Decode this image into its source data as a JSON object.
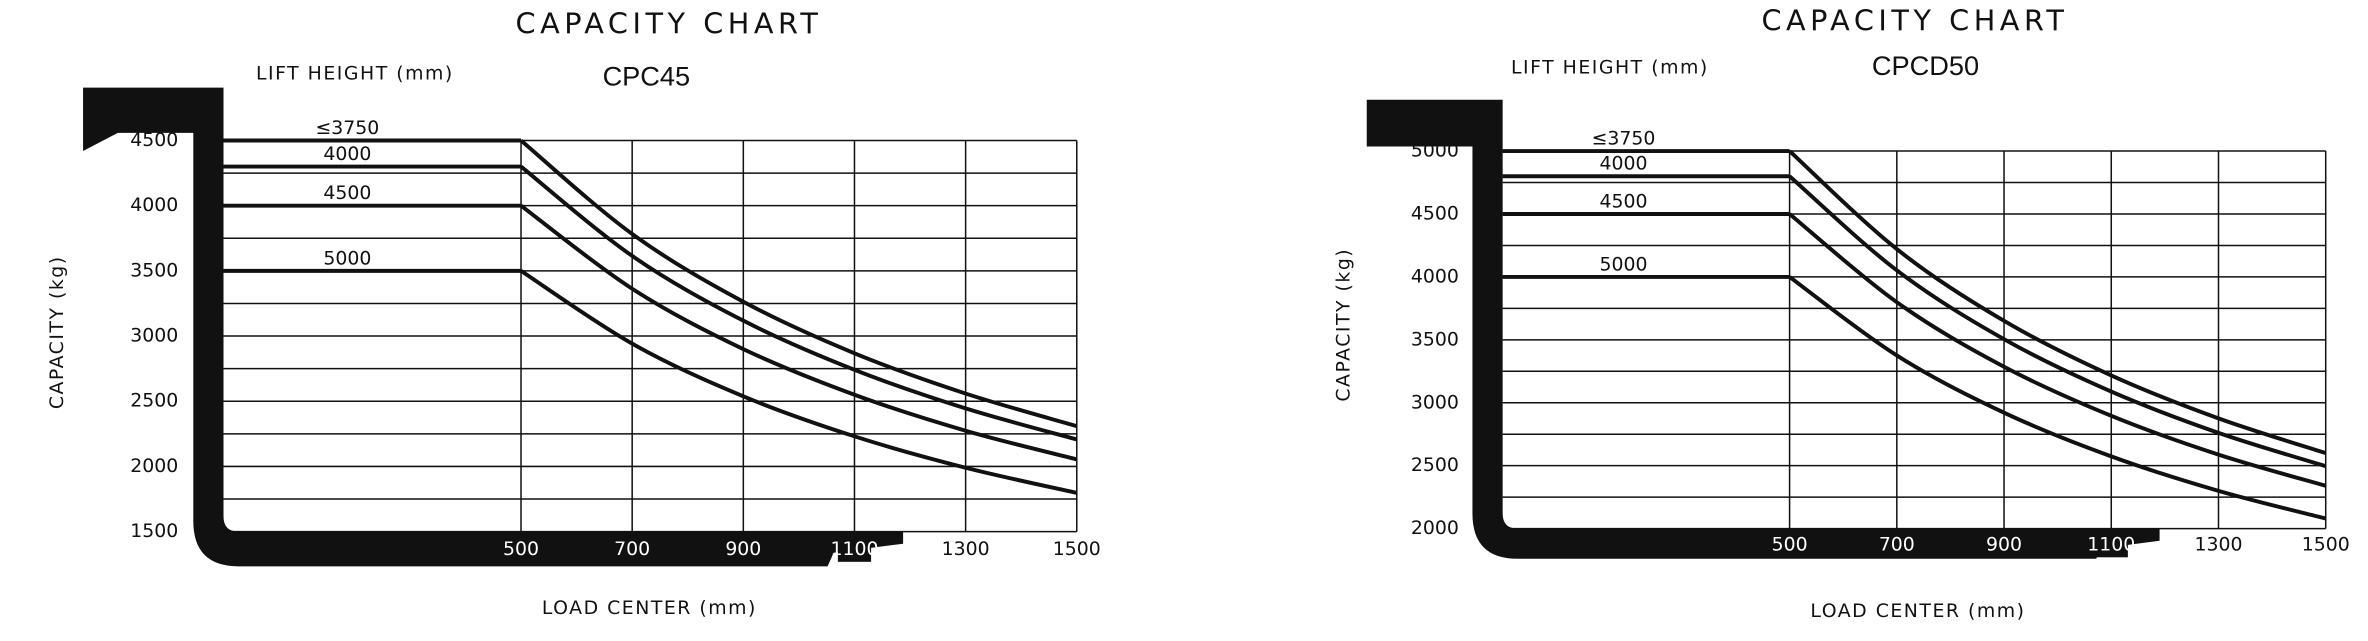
{
  "chart_data": [
    {
      "type": "line",
      "title": "CAPACITY CHART",
      "model": "CPC45",
      "lift_height_label": "LIFT HEIGHT (mm)",
      "y_label": "CAPACITY (kg)",
      "x_label": "LOAD CENTER (mm)",
      "color": "#111111",
      "grid": true,
      "x": [
        500,
        700,
        900,
        1100,
        1300,
        1500
      ],
      "xlim": [
        500,
        1500
      ],
      "xticks": [
        500,
        700,
        900,
        1100,
        1300,
        1500
      ],
      "ylim": [
        1500,
        4500
      ],
      "yticks": [
        1500,
        2000,
        2500,
        3000,
        3500,
        4000,
        4500
      ],
      "minor_yticks": [
        1750,
        2250,
        2750,
        3250,
        3750,
        4250
      ],
      "series": [
        {
          "name": "≤3750",
          "values": [
            4500,
            3783,
            3263,
            2868,
            2559,
            2309
          ]
        },
        {
          "name": "4000",
          "values": [
            4300,
            3615,
            3118,
            2741,
            2445,
            2207
          ]
        },
        {
          "name": "4500",
          "values": [
            4000,
            3363,
            2900,
            2550,
            2274,
            2054
          ]
        },
        {
          "name": "5000",
          "values": [
            3500,
            2942,
            2538,
            2231,
            1990,
            1797
          ]
        }
      ]
    },
    {
      "type": "line",
      "title": "CAPACITY CHART",
      "model": "CPCD50",
      "lift_height_label": "LIFT HEIGHT (mm)",
      "y_label": "CAPACITY (kg)",
      "x_label": "LOAD CENTER (mm)",
      "color": "#111111",
      "grid": true,
      "x": [
        500,
        700,
        900,
        1100,
        1300,
        1500
      ],
      "xlim": [
        500,
        1500
      ],
      "xticks": [
        500,
        700,
        900,
        1100,
        1300,
        1500
      ],
      "ylim": [
        2000,
        5000
      ],
      "yticks": [
        2000,
        2500,
        3000,
        3500,
        4000,
        4500,
        5000
      ],
      "minor_yticks": [
        2250,
        2750,
        3250,
        3750,
        4250,
        4750
      ],
      "series": [
        {
          "name": "≤3750",
          "values": [
            5000,
            4221,
            3651,
            3217,
            2876,
            2600
          ]
        },
        {
          "name": "4000",
          "values": [
            4800,
            4052,
            3505,
            3089,
            2761,
            2496
          ]
        },
        {
          "name": "4500",
          "values": [
            4500,
            3799,
            3286,
            2896,
            2588,
            2340
          ]
        },
        {
          "name": "5000",
          "values": [
            4000,
            3376,
            2921,
            2574,
            2300,
            2080
          ]
        }
      ]
    }
  ]
}
